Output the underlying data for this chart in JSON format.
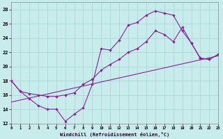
{
  "bg_color": "#c8ecec",
  "grid_color": "#a8d4d4",
  "line_color": "#882299",
  "xlabel": "Windchill (Refroidissement éolien,°C)",
  "xlim": [
    0,
    23
  ],
  "ylim": [
    12,
    29
  ],
  "xticks": [
    0,
    1,
    2,
    3,
    4,
    5,
    6,
    7,
    8,
    9,
    10,
    11,
    12,
    13,
    14,
    15,
    16,
    17,
    18,
    19,
    20,
    21,
    22,
    23
  ],
  "yticks": [
    12,
    14,
    16,
    18,
    20,
    22,
    24,
    26,
    28
  ],
  "series": [
    {
      "x": [
        0,
        1,
        2,
        3,
        4,
        5,
        6,
        7,
        8,
        9,
        10,
        11,
        12,
        13,
        14,
        15,
        16,
        17,
        18,
        19,
        20,
        21,
        22,
        23
      ],
      "y": [
        18.0,
        16.5,
        15.5,
        14.5,
        14.0,
        14.0,
        12.3,
        13.3,
        14.2,
        17.5,
        22.5,
        22.3,
        23.7,
        25.8,
        26.2,
        27.2,
        27.8,
        27.5,
        27.2,
        25.0,
        23.3,
        21.1,
        21.0,
        21.7
      ],
      "markers": true
    },
    {
      "x": [
        0,
        1,
        2,
        3,
        4,
        5,
        6,
        7,
        8,
        9,
        10,
        11,
        12,
        13,
        14,
        15,
        16,
        17,
        18,
        19,
        20,
        21,
        22,
        23
      ],
      "y": [
        18.0,
        16.5,
        16.2,
        16.0,
        15.8,
        15.8,
        16.0,
        16.3,
        17.5,
        18.2,
        19.5,
        20.3,
        21.0,
        22.0,
        22.5,
        23.5,
        25.0,
        24.5,
        23.5,
        25.5,
        23.3,
        21.2,
        21.0,
        21.7
      ],
      "markers": true
    },
    {
      "x": [
        0,
        23
      ],
      "y": [
        15.0,
        21.5
      ],
      "markers": false
    }
  ]
}
